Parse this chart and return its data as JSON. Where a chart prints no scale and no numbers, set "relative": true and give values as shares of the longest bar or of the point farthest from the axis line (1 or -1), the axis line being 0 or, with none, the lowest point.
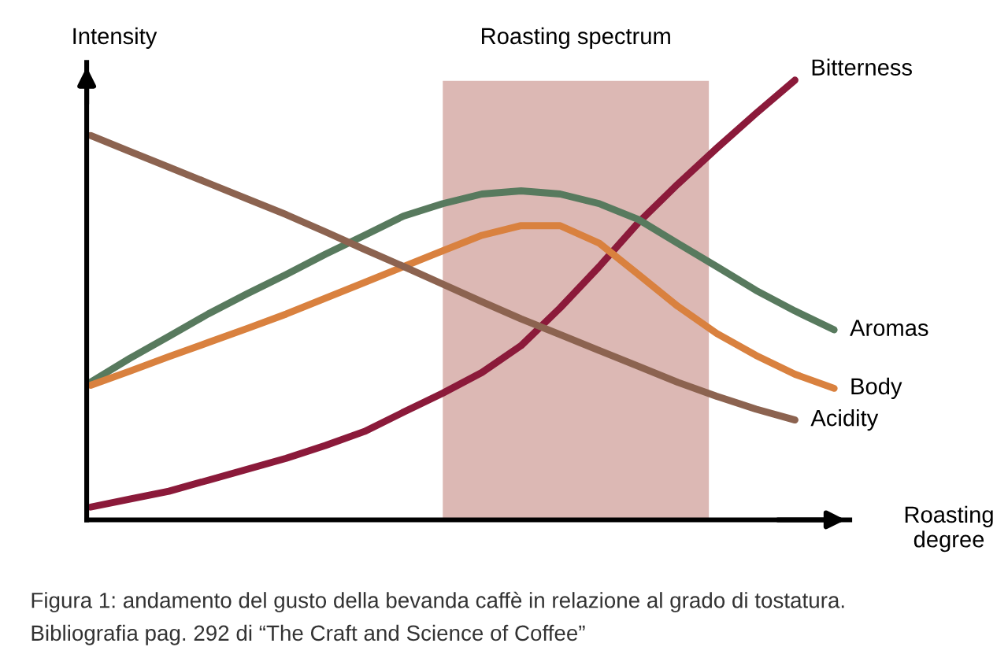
{
  "chart_data": {
    "type": "line",
    "relative": true,
    "xlabel": "Roasting\ndegree",
    "ylabel": "Intensity",
    "categories": [
      null,
      null,
      null,
      null,
      null,
      null,
      null,
      null,
      null,
      null,
      null,
      null,
      null,
      null,
      null,
      null,
      null,
      null,
      null,
      null
    ],
    "series": [
      {
        "name": "Bitterness",
        "color": "#8b1a3a",
        "values": [
          0.029,
          0.047,
          0.065,
          0.09,
          0.115,
          0.14,
          0.169,
          0.201,
          0.245,
          0.288,
          0.335,
          0.396,
          0.482,
          0.576,
          0.676,
          0.763,
          0.845,
          0.924,
          1.0,
          null
        ]
      },
      {
        "name": "Aromas",
        "color": "#587a5e",
        "values": [
          0.313,
          0.367,
          0.417,
          0.468,
          0.514,
          0.558,
          0.604,
          0.647,
          0.691,
          0.719,
          0.741,
          0.748,
          0.741,
          0.719,
          0.683,
          0.629,
          0.576,
          0.522,
          0.475,
          0.432
        ]
      },
      {
        "name": "Body",
        "color": "#d9813f",
        "values": [
          0.306,
          0.338,
          0.371,
          0.403,
          0.435,
          0.468,
          0.504,
          0.54,
          0.576,
          0.612,
          0.647,
          0.669,
          0.669,
          0.629,
          0.558,
          0.486,
          0.424,
          0.374,
          0.331,
          0.299
        ]
      },
      {
        "name": "Acidity",
        "color": "#8c6350",
        "values": [
          0.874,
          0.838,
          0.802,
          0.766,
          0.73,
          0.694,
          0.655,
          0.615,
          0.576,
          0.536,
          0.496,
          0.457,
          0.421,
          0.385,
          0.349,
          0.313,
          0.281,
          0.252,
          0.227,
          null
        ]
      }
    ],
    "annotations": [
      "Roasting spectrum",
      "Figura 1: andamento del gusto della bevanda caffè in relazione al grado di tostatura.",
      "Bibliografia pag. 292 di “The Craft and Science of Coffee”"
    ],
    "legend": false,
    "marker": "none",
    "line_style": "solid"
  }
}
